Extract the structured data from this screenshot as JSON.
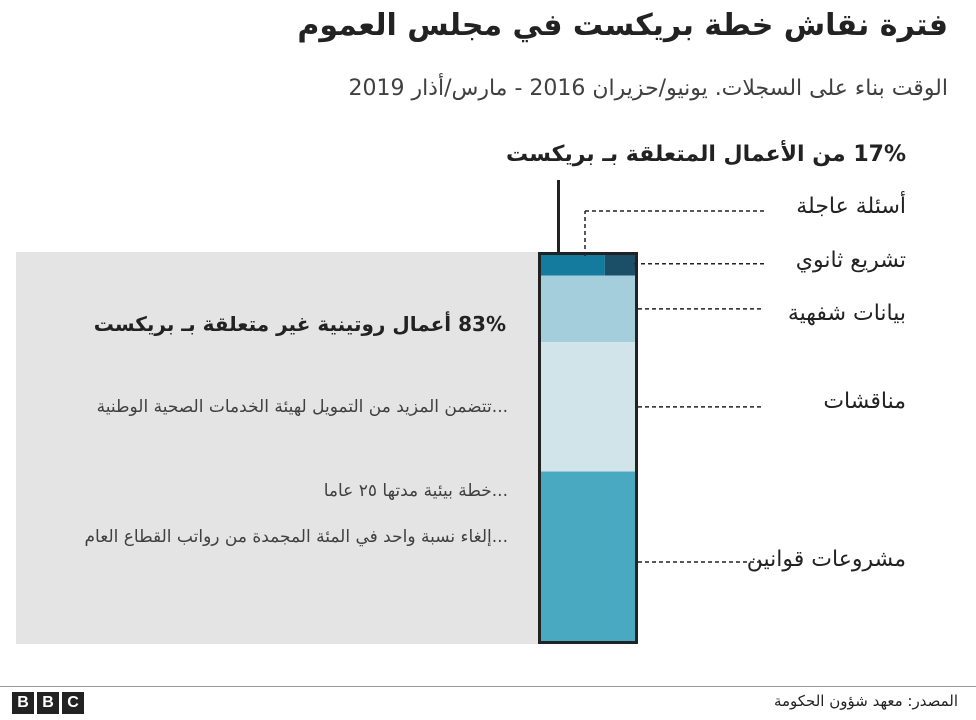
{
  "title": "فترة نقاش خطة بريكست في مجلس العموم",
  "subtitle": "الوقت بناء على السجلات. يونيو/حزيران 2016 - مارس/أذار 2019",
  "chart_data": {
    "type": "bar",
    "stacked": true,
    "brexit_share_label": "17% من الأعمال المتعلقة بـ بريكست",
    "routine_share_label": "83% أعمال روتينية غير متعلقة بـ بريكست",
    "routine_examples": [
      "...تتضمن المزيد من التمويل لهيئة الخدمات الصحية الوطنية",
      "...خطة بيئية مدتها ٢٥ عاما",
      "...إلغاء نسبة واحد في المئة المجمدة من رواتب القطاع العام"
    ],
    "brexit_segments": [
      {
        "name": "أسئلة عاجلة",
        "value": 2,
        "color": "#1b4f68"
      },
      {
        "name": "تشريع ثانوي",
        "value": 4,
        "color": "#147a9e"
      }
    ],
    "segments": [
      {
        "name": "بيانات شفهية",
        "value": 17,
        "color": "#a5cedd"
      },
      {
        "name": "مناقشات",
        "value": 33,
        "color": "#d1e4ea"
      },
      {
        "name": "مشروعات قوانين",
        "value": 44,
        "color": "#48a9c1"
      }
    ]
  },
  "category_labels": [
    "أسئلة عاجلة",
    "تشريع ثانوي",
    "بيانات شفهية",
    "مناقشات",
    "مشروعات قوانين"
  ],
  "footer": {
    "logo": "BBC",
    "source": "المصدر: معهد شؤون الحكومة"
  }
}
